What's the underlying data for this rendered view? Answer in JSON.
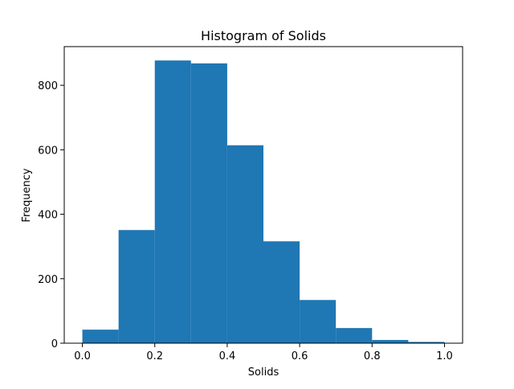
{
  "chart_data": {
    "type": "bar",
    "title": "Histogram of Solids",
    "xlabel": "Solids",
    "ylabel": "Frequency",
    "xlim": [
      -0.05,
      1.05
    ],
    "ylim": [
      0,
      920
    ],
    "x_ticks": [
      {
        "value": 0.0,
        "label": "0.0"
      },
      {
        "value": 0.2,
        "label": "0.2"
      },
      {
        "value": 0.4,
        "label": "0.4"
      },
      {
        "value": 0.6,
        "label": "0.6"
      },
      {
        "value": 0.8,
        "label": "0.8"
      },
      {
        "value": 1.0,
        "label": "1.0"
      }
    ],
    "y_ticks": [
      {
        "value": 0,
        "label": "0"
      },
      {
        "value": 200,
        "label": "200"
      },
      {
        "value": 400,
        "label": "400"
      },
      {
        "value": 600,
        "label": "600"
      },
      {
        "value": 800,
        "label": "800"
      }
    ],
    "bins": [
      {
        "start": 0.0,
        "end": 0.1,
        "count": 42
      },
      {
        "start": 0.1,
        "end": 0.2,
        "count": 351
      },
      {
        "start": 0.2,
        "end": 0.3,
        "count": 877
      },
      {
        "start": 0.3,
        "end": 0.4,
        "count": 868
      },
      {
        "start": 0.4,
        "end": 0.5,
        "count": 614
      },
      {
        "start": 0.5,
        "end": 0.6,
        "count": 316
      },
      {
        "start": 0.6,
        "end": 0.7,
        "count": 134
      },
      {
        "start": 0.7,
        "end": 0.8,
        "count": 47
      },
      {
        "start": 0.8,
        "end": 0.9,
        "count": 10
      },
      {
        "start": 0.9,
        "end": 1.0,
        "count": 4
      }
    ],
    "bar_color": "#1f77b4",
    "grid": false,
    "legend": "none"
  }
}
